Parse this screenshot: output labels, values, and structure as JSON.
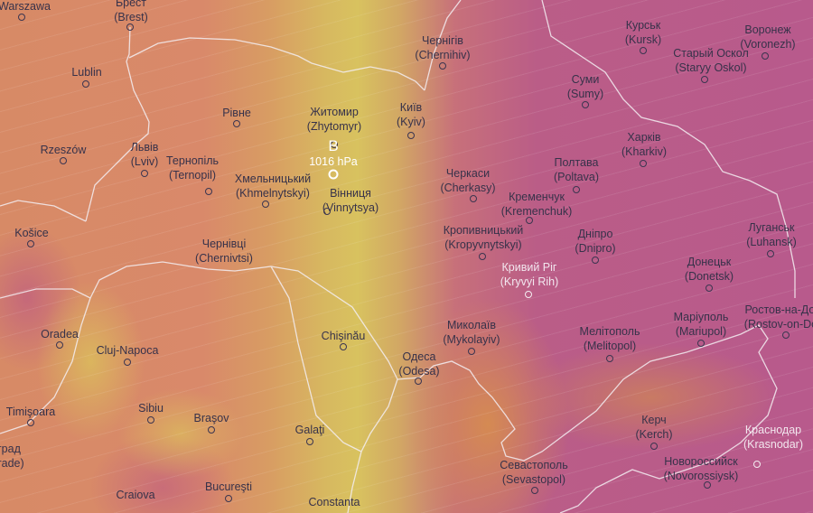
{
  "map": {
    "overlay": "pressure-and-wind",
    "colors": {
      "west": "#d9896a",
      "center": "#d8c25f",
      "east": "#b85a8c",
      "border": "#f4eef2",
      "label": "#37324a"
    },
    "pressure_center": {
      "letter": "B",
      "value": "1016 hPa"
    },
    "cities": [
      {
        "name": "Warszawa"
      },
      {
        "name": "Брест",
        "latin": "(Brest)"
      },
      {
        "name": "Lublin"
      },
      {
        "name": "Чернігів",
        "latin": "(Chernihiv)"
      },
      {
        "name": "Курськ",
        "latin": "(Kursk)"
      },
      {
        "name": "Воронеж",
        "latin": "(Voronezh)"
      },
      {
        "name": "Старый Оскол",
        "latin": "(Staryy Oskol)"
      },
      {
        "name": "Суми",
        "latin": "(Sumy)"
      },
      {
        "name": "Рівне"
      },
      {
        "name": "Житомир",
        "latin": "(Zhytomyr)"
      },
      {
        "name": "Київ",
        "latin": "(Kyiv)"
      },
      {
        "name": "Харків",
        "latin": "(Kharkiv)"
      },
      {
        "name": "Rzeszów"
      },
      {
        "name": "Львів",
        "latin": "(Lviv)"
      },
      {
        "name": "Тернопіль",
        "latin": "(Ternopil)"
      },
      {
        "name": "Хмельницький",
        "latin": "(Khmelnytskyi)"
      },
      {
        "name": "Вінниця",
        "latin": "(Vinnytsya)"
      },
      {
        "name": "Черкаси",
        "latin": "(Cherkasy)"
      },
      {
        "name": "Полтава",
        "latin": "(Poltava)"
      },
      {
        "name": "Кременчук",
        "latin": "(Kremenchuk)"
      },
      {
        "name": "Кропивницький",
        "latin": "(Kropyvnytskyi)"
      },
      {
        "name": "Дніпро",
        "latin": "(Dnipro)"
      },
      {
        "name": "Луганськ",
        "latin": "(Luhansk)"
      },
      {
        "name": "Донецьк",
        "latin": "(Donetsk)"
      },
      {
        "name": "Кривий Ріг",
        "latin": "(Kryvyi Rih)"
      },
      {
        "name": "Košice"
      },
      {
        "name": "Чернівці",
        "latin": "(Chernivtsi)"
      },
      {
        "name": "Oradea"
      },
      {
        "name": "Cluj-Napoca"
      },
      {
        "name": "Chişinău"
      },
      {
        "name": "Миколаїв",
        "latin": "(Mykolayiv)"
      },
      {
        "name": "Мелітополь",
        "latin": "(Melitopol)"
      },
      {
        "name": "Маріуполь",
        "latin": "(Mariupol)"
      },
      {
        "name": "Ростов-на-Дону",
        "latin": "(Rostov-on-Don)"
      },
      {
        "name": "Одеса",
        "latin": "(Odesa)"
      },
      {
        "name": "Timişoara"
      },
      {
        "name": "Sibiu"
      },
      {
        "name": "Braşov"
      },
      {
        "name": "Galaţi"
      },
      {
        "name": "Керч",
        "latin": "(Kerch)"
      },
      {
        "name": "Краснодар",
        "latin": "(Krasnodar)"
      },
      {
        "name": "Новороссийск",
        "latin": "(Novorossiysk)"
      },
      {
        "name": "Севастополь",
        "latin": "(Sevastopol)"
      },
      {
        "name": "Craiova"
      },
      {
        "name": "Bucureşti"
      },
      {
        "name": "Constanta"
      },
      {
        "name": "град",
        "latin": "(rade)"
      }
    ]
  }
}
